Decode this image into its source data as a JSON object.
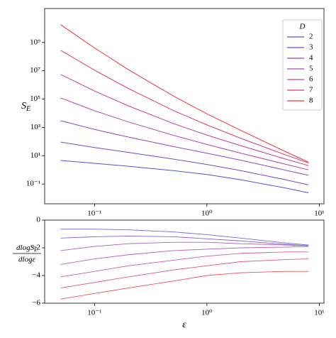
{
  "chart_data": [
    {
      "type": "line",
      "ylabel": {
        "text": "S",
        "subscript": "E"
      },
      "xlog": true,
      "ylog": true,
      "xlim": [
        0.036,
        11
      ],
      "ylim": [
        0.004,
        250000000000
      ],
      "xticks": [
        {
          "value": 0.1,
          "label": "10⁻¹"
        },
        {
          "value": 1,
          "label": "10⁰"
        },
        {
          "value": 10,
          "label": "10¹"
        }
      ],
      "yticks": [
        {
          "value": 0.1,
          "label": "10⁻¹"
        },
        {
          "value": 10,
          "label": "10¹"
        },
        {
          "value": 1000,
          "label": "10³"
        },
        {
          "value": 100000,
          "label": "10⁵"
        },
        {
          "value": 10000000,
          "label": "10⁷"
        },
        {
          "value": 1000000000,
          "label": "10⁹"
        }
      ],
      "legend": "upper right",
      "legend_title": "D",
      "x": [
        0.05,
        0.1,
        0.2,
        0.5,
        1,
        2,
        5,
        8
      ],
      "series": [
        {
          "name": "2",
          "color": "#5050dc",
          "values": [
            4.6,
            2.9,
            1.8,
            0.89,
            0.47,
            0.2,
            0.052,
            0.024
          ]
        },
        {
          "name": "3",
          "color": "#7447d0",
          "values": [
            91,
            38,
            17,
            5.8,
            2.4,
            0.89,
            0.2,
            0.087
          ]
        },
        {
          "name": "4",
          "color": "#9444c4",
          "values": [
            2950,
            716,
            207,
            45,
            15,
            4.8,
            0.95,
            0.41
          ]
        },
        {
          "name": "5",
          "color": "#ae42b4",
          "values": [
            120000,
            15000,
            2430,
            279,
            63,
            15,
            2.5,
            1.0
          ]
        },
        {
          "name": "6",
          "color": "#c73f98",
          "values": [
            5500000,
            370000,
            33000,
            1900,
            285,
            51,
            5.8,
            2.0
          ]
        },
        {
          "name": "7",
          "color": "#dc3c6e",
          "values": [
            280000000,
            11000000,
            560000,
            16000,
            1500,
            170,
            11.5,
            3.1
          ]
        },
        {
          "name": "8",
          "color": "#ee3535",
          "values": [
            18000000000,
            410000000,
            12000000,
            170000,
            9100,
            620,
            19.5,
            3.5
          ]
        }
      ]
    },
    {
      "type": "line",
      "ylabel": {
        "numerator": {
          "text": "dlogS",
          "subscript": "E"
        },
        "denominator": "dlogε"
      },
      "xlabel": "ε",
      "xlog": true,
      "xlim": [
        0.036,
        11
      ],
      "ylim": [
        -6,
        0
      ],
      "xticks": [
        {
          "value": 0.1,
          "label": "10⁻¹"
        },
        {
          "value": 1,
          "label": "10⁰"
        },
        {
          "value": 10,
          "label": "10¹"
        }
      ],
      "yticks": [
        {
          "value": -6,
          "label": "−6"
        },
        {
          "value": -4,
          "label": "−4"
        },
        {
          "value": -2,
          "label": "−2"
        },
        0
      ],
      "x": [
        0.05,
        0.1,
        0.2,
        0.5,
        1,
        2,
        5,
        8
      ],
      "series": [
        {
          "color": "#5050dc",
          "values": [
            -0.65,
            -0.65,
            -0.7,
            -0.85,
            -1.05,
            -1.3,
            -1.65,
            -1.8
          ]
        },
        {
          "color": "#7447d0",
          "values": [
            -1.3,
            -1.2,
            -1.15,
            -1.2,
            -1.35,
            -1.5,
            -1.75,
            -1.85
          ]
        },
        {
          "color": "#9444c4",
          "values": [
            -2.2,
            -1.9,
            -1.7,
            -1.6,
            -1.6,
            -1.7,
            -1.8,
            -1.85
          ]
        },
        {
          "color": "#ae42b4",
          "values": [
            -3.2,
            -2.8,
            -2.5,
            -2.2,
            -2.1,
            -2.0,
            -1.95,
            -1.9
          ]
        },
        {
          "color": "#c73f98",
          "values": [
            -4.1,
            -3.7,
            -3.3,
            -2.9,
            -2.6,
            -2.4,
            -2.3,
            -2.3
          ]
        },
        {
          "color": "#dc3c6e",
          "values": [
            -4.9,
            -4.5,
            -4.1,
            -3.6,
            -3.3,
            -3.0,
            -2.85,
            -2.8
          ]
        },
        {
          "color": "#ee3535",
          "values": [
            -5.7,
            -5.3,
            -4.9,
            -4.4,
            -4.0,
            -3.8,
            -3.7,
            -3.7
          ]
        }
      ]
    }
  ]
}
